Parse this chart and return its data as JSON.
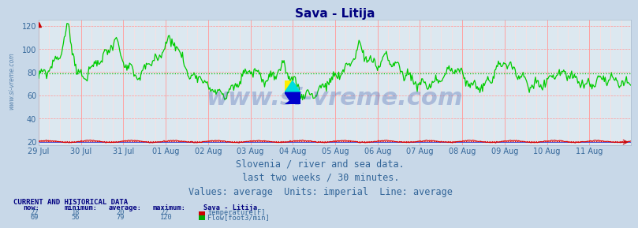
{
  "title": "Sava - Litija",
  "title_color": "#000080",
  "title_fontsize": 11,
  "bg_color": "#c8d8e8",
  "plot_bg_color": "#dce8f0",
  "xlabel_texts": [
    "29 Jul",
    "30 Jul",
    "31 Jul",
    "01 Aug",
    "02 Aug",
    "03 Aug",
    "04 Aug",
    "05 Aug",
    "06 Aug",
    "07 Aug",
    "08 Aug",
    "09 Aug",
    "10 Aug",
    "11 Aug"
  ],
  "ylabel_ticks": [
    20,
    40,
    60,
    80,
    100,
    120
  ],
  "ylim": [
    17,
    125
  ],
  "grid_color_major": "#ff9999",
  "grid_color_minor": "#ffdddd",
  "avg_line_color_flow": "#00bb00",
  "avg_line_color_temp": "#cc0000",
  "avg_flow": 79,
  "avg_temp": 20,
  "watermark": "www.si-vreme.com",
  "watermark_color": "#3355aa",
  "watermark_alpha": 0.3,
  "watermark_fontsize": 22,
  "side_text": "www.si-vreme.com",
  "side_text_color": "#336699",
  "subtitle1": "Slovenia / river and sea data.",
  "subtitle2": "last two weeks / 30 minutes.",
  "subtitle3": "Values: average  Units: imperial  Line: average",
  "subtitle_color": "#336699",
  "subtitle_fontsize": 8.5,
  "n_points": 672,
  "temp_now": 22,
  "temp_min": 18,
  "temp_avg": 20,
  "temp_max": 22,
  "flow_now": 69,
  "flow_min": 56,
  "flow_avg": 79,
  "flow_max": 120,
  "temp_color": "#cc0000",
  "flow_color": "#00aa00",
  "table_header_color": "#000080",
  "table_data_color": "#336699",
  "current_label_color": "#000080"
}
